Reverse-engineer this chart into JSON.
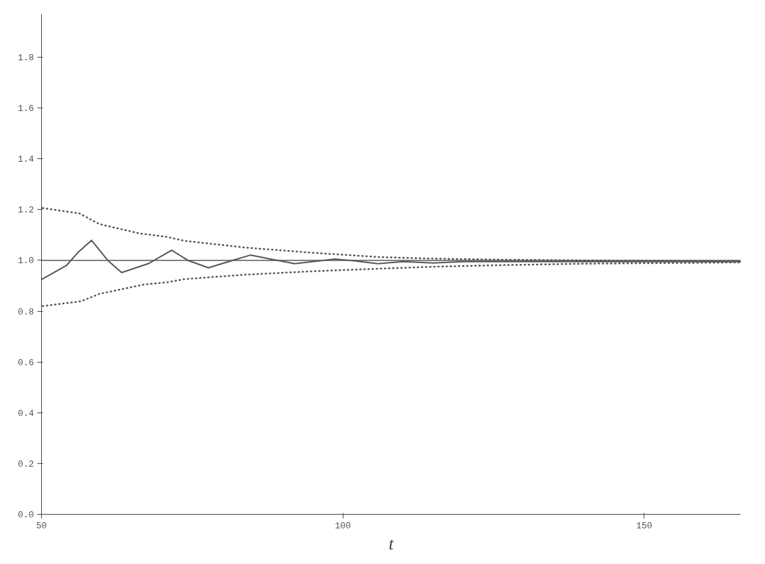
{
  "chart_data": {
    "type": "line",
    "xlabel": "t",
    "xlim": [
      50,
      166
    ],
    "ylim": [
      0,
      1.97
    ],
    "grid": false,
    "marker": "none",
    "xticks": [
      50,
      100,
      150
    ],
    "yticks": [
      {
        "value": 0,
        "label": "0.0"
      },
      0.2,
      0.4,
      0.6,
      0.8,
      {
        "value": 1,
        "label": "1.0"
      },
      1.2,
      1.4,
      1.6,
      1.8
    ],
    "ref_lines": [
      {
        "axis": "y",
        "value": 1.0,
        "color": "#555555",
        "line_style": "solid"
      }
    ],
    "series": [
      {
        "color": "#555555",
        "line_style": "solid",
        "x": [
          50.1,
          54.1,
          56,
          58.3,
          61,
          63.3,
          67.7,
          71.6,
          74.3,
          77.7,
          81.7,
          84.7,
          88,
          92,
          95,
          98.7,
          102,
          105.8,
          110,
          115,
          120,
          130,
          166
        ],
        "values": [
          0.926,
          0.979,
          1.03,
          1.079,
          1.0,
          0.952,
          0.987,
          1.04,
          1.0,
          0.971,
          1.0,
          1.021,
          1.005,
          0.987,
          0.995,
          1.005,
          0.998,
          0.987,
          0.995,
          0.99,
          0.995,
          0.995,
          0.995
        ]
      },
      {
        "color": "#555555",
        "line_style": "dotted",
        "x": [
          50.2,
          56.3,
          59.6,
          66.3,
          70.7,
          73.7,
          84,
          95,
          106,
          115,
          125.7,
          140,
          166
        ],
        "values": [
          1.206,
          1.185,
          1.143,
          1.106,
          1.093,
          1.077,
          1.05,
          1.03,
          1.013,
          1.007,
          1.003,
          1.0,
          0.997
        ]
      },
      {
        "color": "#555555",
        "line_style": "dotted",
        "x": [
          50.2,
          56.6,
          59.6,
          67,
          70.7,
          73.7,
          84,
          95,
          104.6,
          115,
          125.7,
          140,
          166
        ],
        "values": [
          0.82,
          0.839,
          0.868,
          0.905,
          0.913,
          0.926,
          0.944,
          0.957,
          0.966,
          0.975,
          0.981,
          0.987,
          0.992
        ]
      }
    ]
  }
}
